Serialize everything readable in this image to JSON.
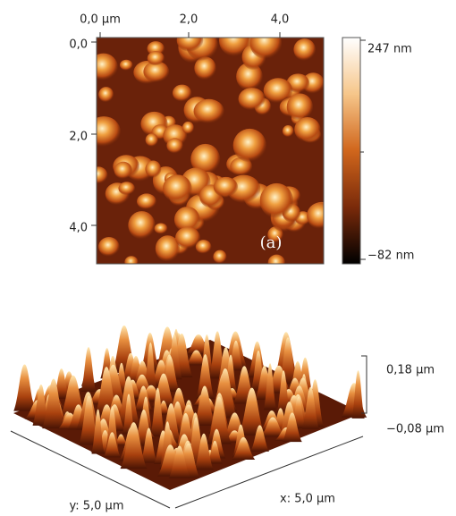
{
  "afm_image": {
    "x_ticks": [
      "0,0 µm",
      "2,0",
      "4,0"
    ],
    "y_ticks": [
      "0,0",
      "2,0",
      "4,0"
    ],
    "panel_label": "(a)"
  },
  "colorbar": {
    "max_label": "247 nm",
    "min_label": "−82 nm"
  },
  "surface_3d": {
    "z_max_label": "0,18 µm",
    "z_min_label": "−0,08 µm",
    "y_axis_label": "y: 5,0 µm",
    "x_axis_label": "x: 5,0 µm"
  }
}
